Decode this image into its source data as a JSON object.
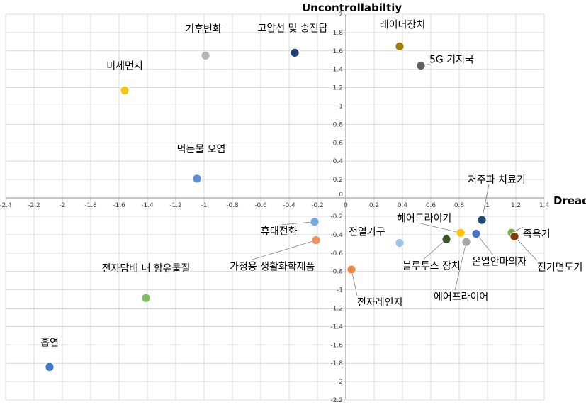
{
  "chart_data": {
    "type": "scatter",
    "xlabel": "Dread",
    "ylabel": "Uncontrollabiltiy",
    "xlim": [
      -2.4,
      1.4
    ],
    "ylim": [
      -2.2,
      2.0
    ],
    "xticks": [
      "-2.4",
      "-2.2",
      "-2",
      "-1.8",
      "-1.6",
      "-1.4",
      "-1.2",
      "-1",
      "-0.8",
      "-0.6",
      "-0.4",
      "-0.2",
      "0",
      "0.2",
      "0.4",
      "0.6",
      "0.8",
      "1",
      "1.2",
      "1.4"
    ],
    "yticks": [
      "-2.2",
      "-2",
      "-1.8",
      "-1.6",
      "-1.4",
      "-1.2",
      "-1",
      "-0.8",
      "-0.6",
      "-0.4",
      "-0.2",
      "0",
      "0.2",
      "0.4",
      "0.6",
      "0.8",
      "1",
      "1.2",
      "1.4",
      "1.6",
      "1.8",
      "2"
    ],
    "grid": true,
    "points": [
      {
        "label": "흡연",
        "x": -2.09,
        "y": -1.84,
        "color": "#3a76c9"
      },
      {
        "label": "전자담배 내 함유물질",
        "x": -1.41,
        "y": -1.09,
        "color": "#7fbf5e"
      },
      {
        "label": "미세먼지",
        "x": -1.56,
        "y": 1.17,
        "color": "#f5c518"
      },
      {
        "label": "기후변화",
        "x": -0.99,
        "y": 1.55,
        "color": "#b3b3b3"
      },
      {
        "label": "먹는물 오염",
        "x": -1.05,
        "y": 0.21,
        "color": "#5b8fd8"
      },
      {
        "label": "고압선 및 송전탑",
        "x": -0.36,
        "y": 1.58,
        "color": "#1f3f77"
      },
      {
        "label": "휴대전화",
        "x": -0.22,
        "y": -0.26,
        "color": "#6ea9de"
      },
      {
        "label": "가정용 생활화학제품",
        "x": -0.21,
        "y": -0.46,
        "color": "#f0905a"
      },
      {
        "label": "전자레인지",
        "x": 0.04,
        "y": -0.78,
        "color": "#ef8a46"
      },
      {
        "label": "레이더장치",
        "x": 0.38,
        "y": 1.65,
        "color": "#a07d0b"
      },
      {
        "label": "5G 기지국",
        "x": 0.53,
        "y": 1.44,
        "color": "#5f5f5f"
      },
      {
        "label": "전열기구",
        "x": 0.38,
        "y": -0.49,
        "color": "#9ec4ea"
      },
      {
        "label": "헤어드라이기",
        "x": 0.81,
        "y": -0.38,
        "color": "#ffc000"
      },
      {
        "label": "블루투스 장치",
        "x": 0.71,
        "y": -0.45,
        "color": "#375623"
      },
      {
        "label": "에어프라이어",
        "x": 0.85,
        "y": -0.48,
        "color": "#a6a6a6"
      },
      {
        "label": "온열안마의자",
        "x": 0.92,
        "y": -0.39,
        "color": "#4472c4"
      },
      {
        "label": "저주파 치료기",
        "x": 0.96,
        "y": -0.24,
        "color": "#1f4e79"
      },
      {
        "label": "족욕기",
        "x": 1.17,
        "y": -0.38,
        "color": "#70ad47"
      },
      {
        "label": "전기면도기",
        "x": 1.19,
        "y": -0.42,
        "color": "#843c0c"
      }
    ]
  }
}
